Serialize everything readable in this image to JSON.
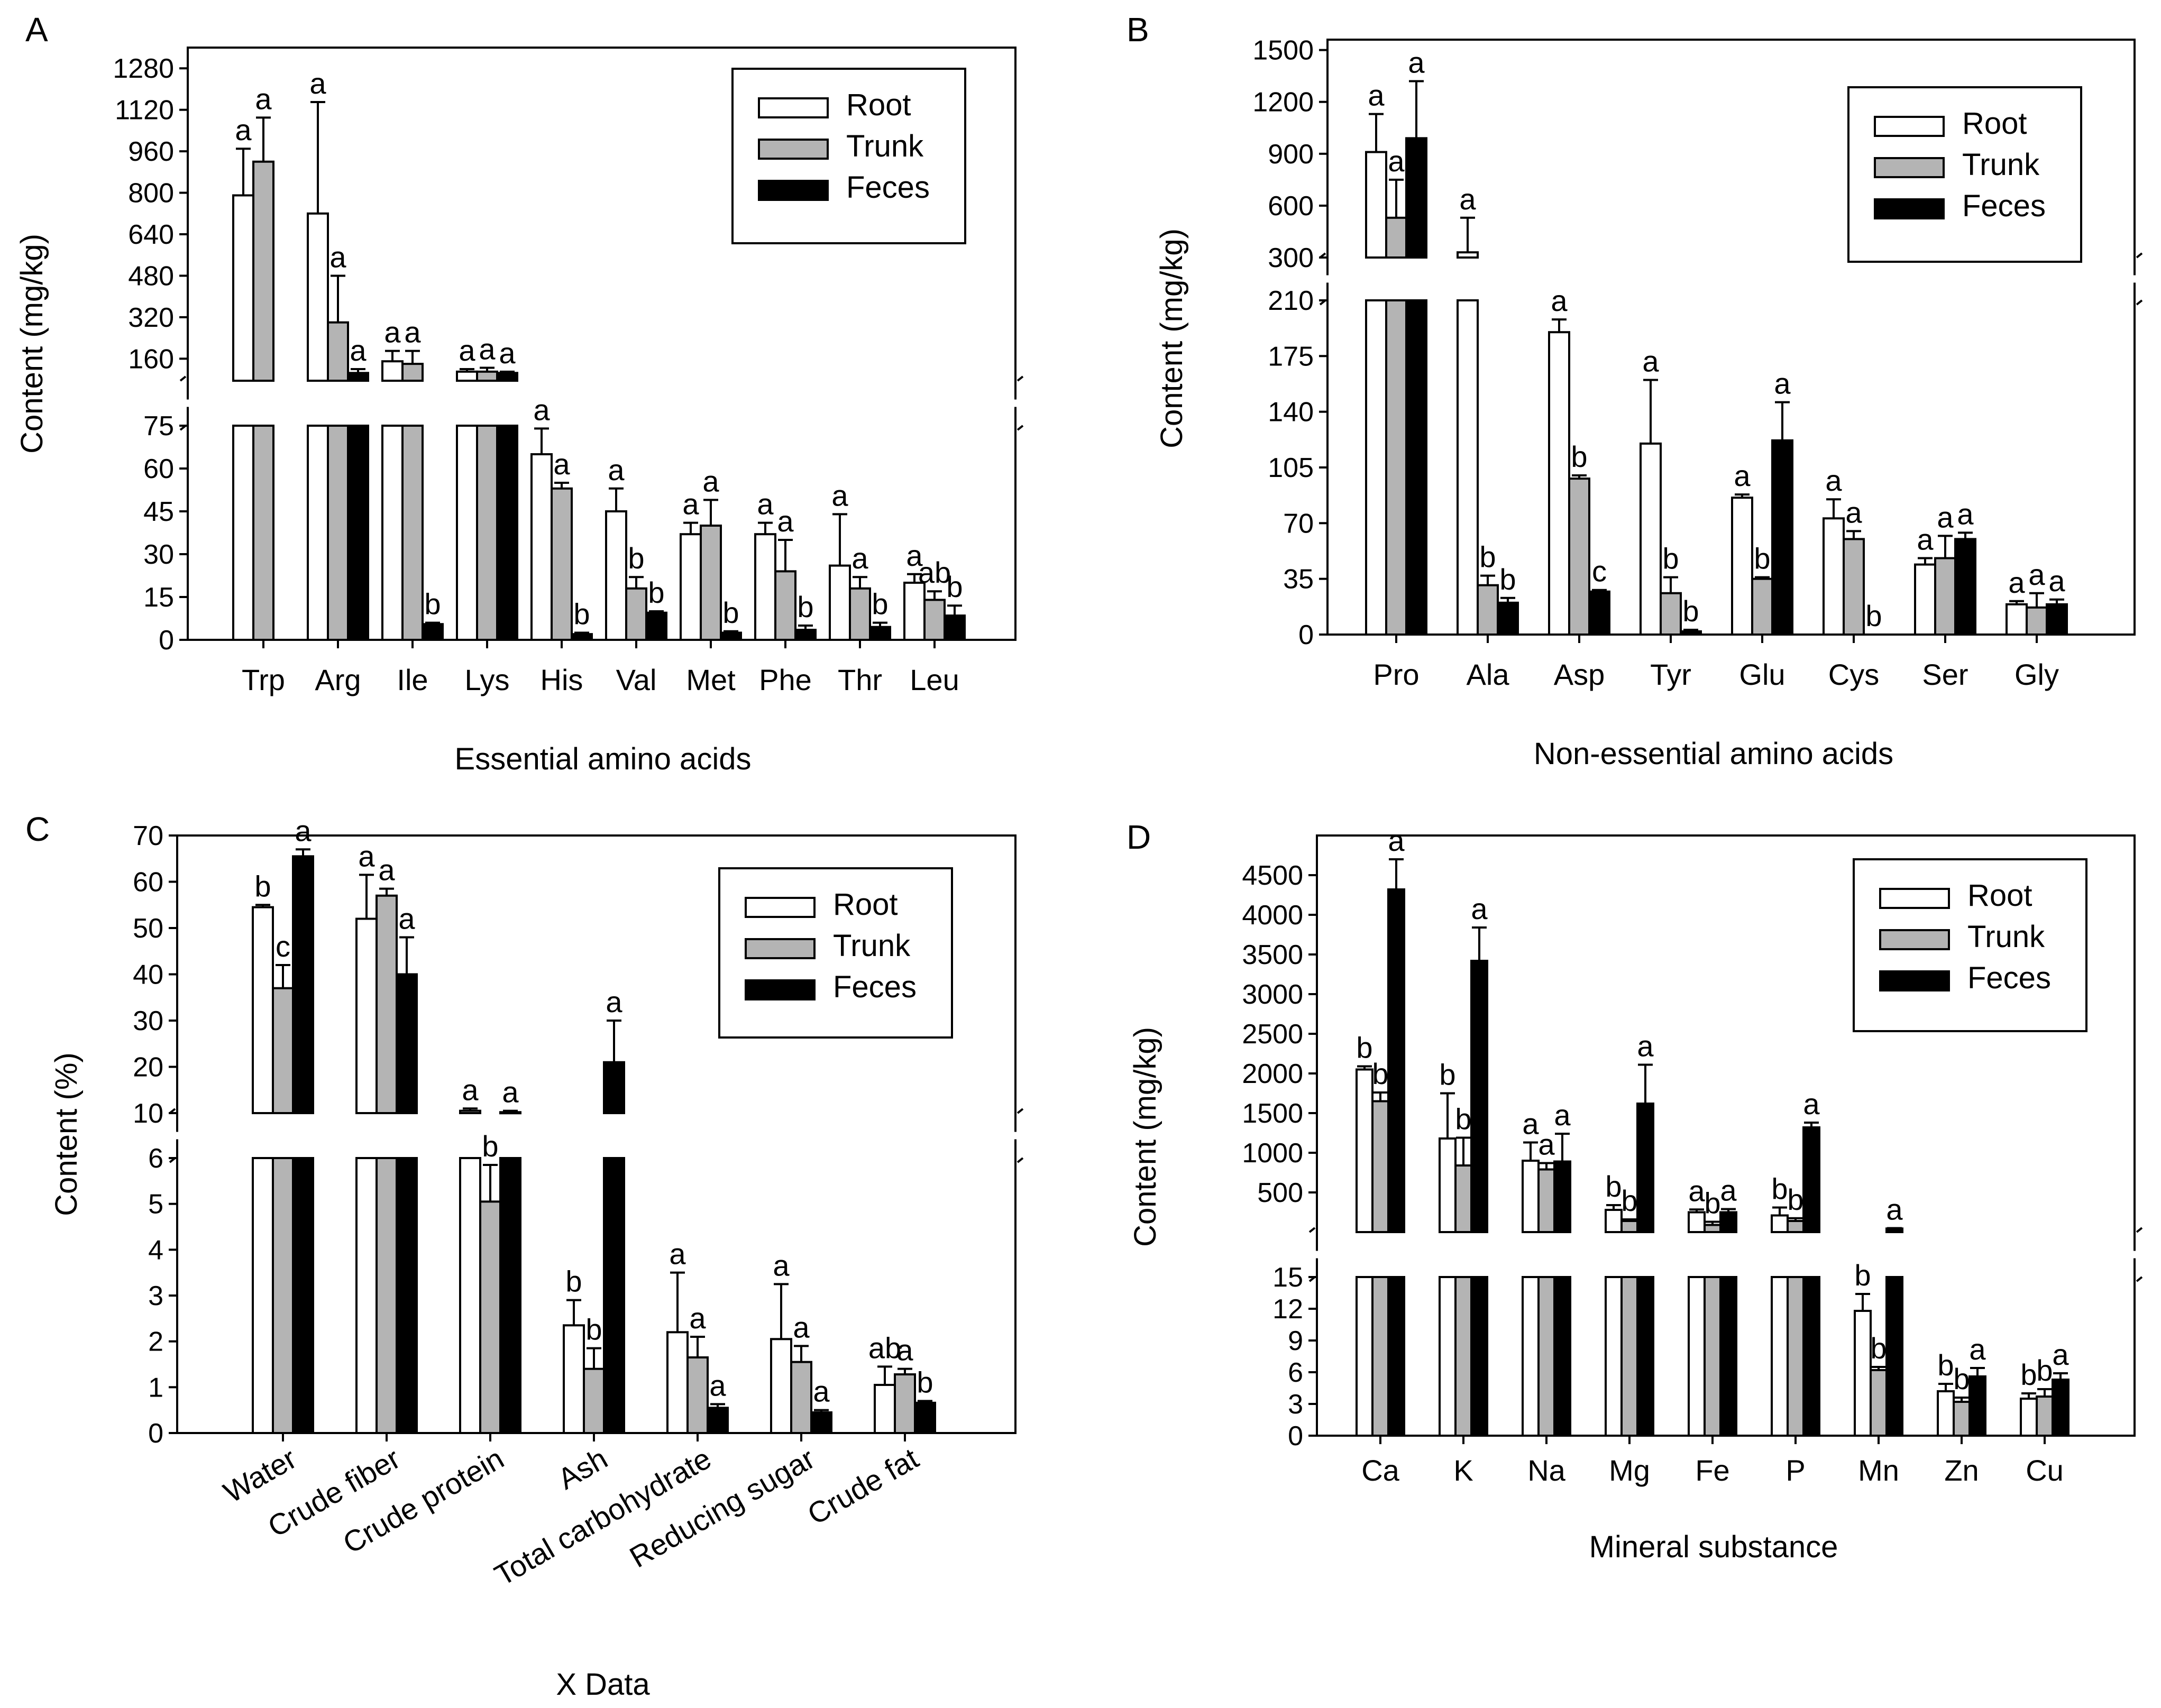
{
  "figure": {
    "panel_labels": [
      "A",
      "B",
      "C",
      "D"
    ],
    "legend": [
      "Root",
      "Trunk",
      "Feces"
    ],
    "colors": {
      "Root": "#ffffff",
      "Trunk": "#b4b4b4",
      "Feces": "#000000",
      "axis": "#000000"
    }
  },
  "chart_data": [
    {
      "panel": "A",
      "type": "bar",
      "xlabel": "Essential amino acids",
      "ylabel": "Content (mg/kg)",
      "broken_axis": {
        "lower_range": [
          0,
          75
        ],
        "upper_range": [
          75,
          1360
        ]
      },
      "lower_ticks": [
        "0",
        "15",
        "30",
        "45",
        "60",
        "75"
      ],
      "upper_ticks": [
        "160",
        "320",
        "480",
        "640",
        "800",
        "960",
        "1120",
        "1280"
      ],
      "categories": [
        "Trp",
        "Arg",
        "Ile",
        "Lys",
        "His",
        "Val",
        "Met",
        "Phe",
        "Thr",
        "Leu"
      ],
      "series": [
        {
          "name": "Root",
          "values": [
            790,
            720,
            150,
            110,
            65,
            45,
            37,
            37,
            26,
            20
          ],
          "errors": [
            180,
            430,
            40,
            10,
            9,
            8,
            4,
            4,
            18,
            3
          ]
        },
        {
          "name": "Trunk",
          "values": [
            920,
            300,
            140,
            110,
            53,
            18,
            40,
            24,
            18,
            14
          ],
          "errors": [
            170,
            180,
            50,
            15,
            2,
            4,
            9,
            11,
            4,
            3
          ]
        },
        {
          "name": "Feces",
          "values": [
            0,
            105,
            5.5,
            105,
            2,
            9.5,
            2.5,
            3.5,
            4.5,
            8.5
          ],
          "errors": [
            0,
            15,
            0.5,
            5,
            0.5,
            0.5,
            0.5,
            1.5,
            1.5,
            3.5
          ]
        }
      ],
      "letters": [
        [
          "a",
          "a",
          ""
        ],
        [
          "a",
          "a",
          "a"
        ],
        [
          "a",
          "a",
          "b"
        ],
        [
          "a",
          "a",
          "a"
        ],
        [
          "a",
          "a",
          "b"
        ],
        [
          "a",
          "b",
          "b"
        ],
        [
          "a",
          "a",
          "b"
        ],
        [
          "a",
          "a",
          "b"
        ],
        [
          "a",
          "a",
          "b"
        ],
        [
          "a",
          "ab",
          "b"
        ]
      ],
      "legend_position": "top-right"
    },
    {
      "panel": "B",
      "type": "bar",
      "xlabel": "Non-essential amino acids",
      "ylabel": "Content (mg/kg)",
      "broken_axis": {
        "lower_range": [
          0,
          210
        ],
        "upper_range": [
          300,
          1560
        ]
      },
      "lower_ticks": [
        "0",
        "35",
        "70",
        "105",
        "140",
        "175",
        "210"
      ],
      "upper_ticks": [
        "300",
        "600",
        "900",
        "1200",
        "1500"
      ],
      "categories": [
        "Pro",
        "Ala",
        "Asp",
        "Tyr",
        "Glu",
        "Cys",
        "Ser",
        "Gly"
      ],
      "series": [
        {
          "name": "Root",
          "values": [
            910,
            330,
            190,
            120,
            86,
            73,
            44,
            19
          ],
          "errors": [
            220,
            200,
            8,
            40,
            2,
            12,
            4,
            2
          ]
        },
        {
          "name": "Trunk",
          "values": [
            530,
            31,
            98,
            26,
            35,
            60,
            48,
            17
          ],
          "errors": [
            220,
            6,
            2,
            10,
            1,
            5,
            14,
            9
          ]
        },
        {
          "name": "Feces",
          "values": [
            990,
            20,
            27,
            2,
            122,
            0,
            60,
            19
          ],
          "errors": [
            330,
            3,
            1,
            1,
            24,
            0,
            4,
            3
          ]
        }
      ],
      "letters": [
        [
          "a",
          "a",
          "a"
        ],
        [
          "a",
          "b",
          "b"
        ],
        [
          "a",
          "b",
          "c"
        ],
        [
          "a",
          "b",
          "b"
        ],
        [
          "a",
          "b",
          "a"
        ],
        [
          "a",
          "a",
          "b"
        ],
        [
          "a",
          "a",
          "a"
        ],
        [
          "a",
          "a",
          "a"
        ]
      ],
      "legend_position": "top-right"
    },
    {
      "panel": "C",
      "type": "bar",
      "xlabel": "X Data",
      "ylabel": "Content (%)",
      "broken_axis": {
        "lower_range": [
          0,
          6
        ],
        "upper_range": [
          10,
          70
        ]
      },
      "lower_ticks": [
        "0",
        "1",
        "2",
        "3",
        "4",
        "5",
        "6"
      ],
      "upper_ticks": [
        "10",
        "20",
        "30",
        "40",
        "50",
        "60",
        "70"
      ],
      "categories": [
        "Water",
        "Crude fiber",
        "Crude protein",
        "Ash",
        "Total carbohydrate",
        "Reducing sugar",
        "Crude fat"
      ],
      "series": [
        {
          "name": "Root",
          "values": [
            54.5,
            52,
            10.5,
            2.35,
            2.2,
            2.05,
            1.05
          ],
          "errors": [
            0.5,
            9.5,
            0.5,
            0.55,
            1.3,
            1.2,
            0.4
          ]
        },
        {
          "name": "Trunk",
          "values": [
            37,
            57,
            5.05,
            1.4,
            1.65,
            1.55,
            1.28
          ],
          "errors": [
            5,
            1.5,
            0.8,
            0.45,
            0.45,
            0.35,
            0.12
          ]
        },
        {
          "name": "Feces",
          "values": [
            65.5,
            40,
            10.2,
            21,
            0.55,
            0.45,
            0.66
          ],
          "errors": [
            1.5,
            8,
            0.3,
            9,
            0.08,
            0.05,
            0.04
          ]
        }
      ],
      "letters": [
        [
          "b",
          "c",
          "a"
        ],
        [
          "a",
          "a",
          "a"
        ],
        [
          "a",
          "b",
          "a"
        ],
        [
          "b",
          "b",
          "a"
        ],
        [
          "a",
          "a",
          "a"
        ],
        [
          "a",
          "a",
          "a"
        ],
        [
          "ab",
          "a",
          "b"
        ]
      ],
      "legend_position": "top-right"
    },
    {
      "panel": "D",
      "type": "bar",
      "xlabel": "Mineral substance",
      "ylabel": "Content (mg/kg)",
      "broken_axis": {
        "lower_range": [
          0,
          15
        ],
        "upper_range": [
          0,
          5000
        ]
      },
      "lower_ticks": [
        "0",
        "3",
        "6",
        "9",
        "12",
        "15"
      ],
      "upper_ticks": [
        "500",
        "1000",
        "1500",
        "2000",
        "2500",
        "3000",
        "3500",
        "4000",
        "4500"
      ],
      "categories": [
        "Ca",
        "K",
        "Na",
        "Mg",
        "Fe",
        "P",
        "Mn",
        "Zn",
        "Cu"
      ],
      "series": [
        {
          "name": "Root",
          "values": [
            2050,
            1180,
            900,
            280,
            250,
            210,
            11.8,
            4.2,
            3.5
          ],
          "errors": [
            40,
            570,
            230,
            60,
            35,
            100,
            1.6,
            0.7,
            0.5
          ]
        },
        {
          "name": "Trunk",
          "values": [
            1650,
            840,
            790,
            140,
            90,
            140,
            6.2,
            3.2,
            3.7
          ],
          "errors": [
            110,
            350,
            80,
            20,
            40,
            35,
            0.3,
            0.4,
            0.7
          ]
        },
        {
          "name": "Feces",
          "values": [
            4320,
            3420,
            890,
            1620,
            250,
            1320,
            45,
            5.6,
            5.3
          ],
          "errors": [
            380,
            420,
            350,
            490,
            40,
            60,
            5,
            0.8,
            0.6
          ]
        }
      ],
      "letters": [
        [
          "b",
          "b",
          "a"
        ],
        [
          "b",
          "b",
          "a"
        ],
        [
          "a",
          "a",
          "a"
        ],
        [
          "b",
          "b",
          "a"
        ],
        [
          "a",
          "b",
          "a"
        ],
        [
          "b",
          "b",
          "a"
        ],
        [
          "b",
          "b",
          "a"
        ],
        [
          "b",
          "b",
          "a"
        ],
        [
          "b",
          "b",
          "a"
        ]
      ],
      "legend_position": "top-right"
    }
  ]
}
